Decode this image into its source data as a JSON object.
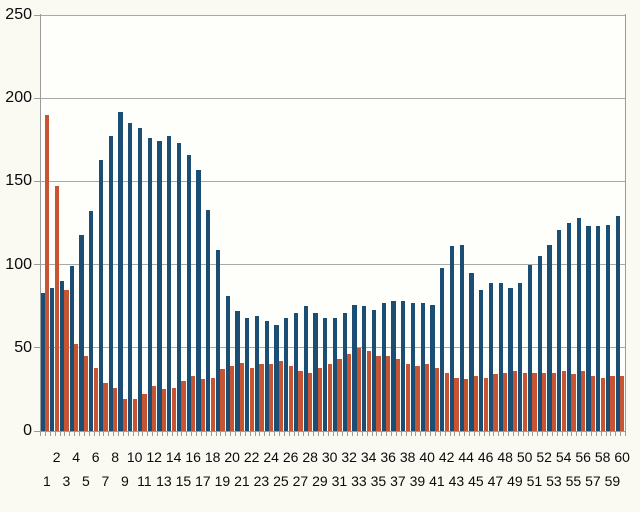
{
  "chart_data": {
    "type": "bar",
    "title": "",
    "legend": "none",
    "grid": true,
    "ylim": [
      0,
      250
    ],
    "y_ticks": [
      0,
      50,
      100,
      150,
      200,
      250
    ],
    "categories": [
      1,
      2,
      3,
      4,
      5,
      6,
      7,
      8,
      9,
      10,
      11,
      12,
      13,
      14,
      15,
      16,
      17,
      18,
      19,
      20,
      21,
      22,
      23,
      24,
      25,
      26,
      27,
      28,
      29,
      30,
      31,
      32,
      33,
      34,
      35,
      36,
      37,
      38,
      39,
      40,
      41,
      42,
      43,
      44,
      45,
      46,
      47,
      48,
      49,
      50,
      51,
      52,
      53,
      54,
      55,
      56,
      57,
      58,
      59,
      60
    ],
    "x_label_rows": {
      "even_row_values": [
        2,
        4,
        6,
        8,
        10,
        12,
        14,
        16,
        18,
        20,
        22,
        24,
        26,
        28,
        30,
        32,
        34,
        36,
        38,
        40,
        42,
        44,
        46,
        48,
        50,
        52,
        54,
        56,
        58,
        60
      ],
      "odd_row_values": [
        1,
        3,
        5,
        7,
        9,
        11,
        13,
        15,
        17,
        19,
        21,
        23,
        25,
        27,
        29,
        31,
        33,
        35,
        37,
        39,
        41,
        43,
        45,
        47,
        49,
        51,
        53,
        55,
        57,
        59
      ]
    },
    "series": [
      {
        "name": "blue",
        "color": "#1B4E74",
        "values": [
          83,
          86,
          90,
          99,
          118,
          132,
          163,
          177,
          192,
          185,
          182,
          176,
          174,
          177,
          173,
          166,
          157,
          133,
          109,
          81,
          72,
          68,
          69,
          66,
          64,
          68,
          71,
          75,
          71,
          68,
          68,
          71,
          76,
          75,
          73,
          77,
          78,
          78,
          77,
          77,
          76,
          98,
          111,
          112,
          95,
          85,
          89,
          89,
          86,
          89,
          100,
          105,
          112,
          121,
          125,
          128,
          123,
          123,
          124,
          129
        ]
      },
      {
        "name": "orange",
        "color": "#C75432",
        "values": [
          190,
          147,
          85,
          52,
          45,
          38,
          29,
          26,
          19,
          19,
          22,
          27,
          25,
          26,
          30,
          33,
          31,
          32,
          37,
          39,
          41,
          38,
          40,
          40,
          42,
          39,
          36,
          35,
          38,
          40,
          43,
          46,
          50,
          48,
          45,
          45,
          43,
          40,
          39,
          40,
          38,
          35,
          32,
          31,
          33,
          32,
          34,
          35,
          36,
          35,
          35,
          35,
          35,
          36,
          34,
          36,
          33,
          32,
          33,
          33
        ]
      }
    ],
    "colors": {
      "gridline": "#A9A9A9",
      "axis": "#9B9B9B",
      "label": "#0B0B0B",
      "plot_background": "#FEFEFB",
      "page_background": "#FAF9F2"
    }
  }
}
